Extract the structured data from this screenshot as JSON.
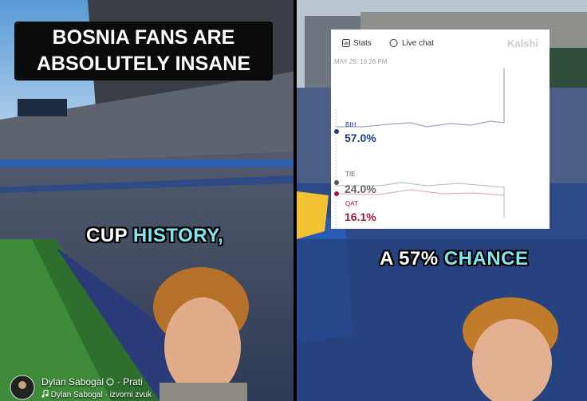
{
  "left_video": {
    "headline": [
      "BOSNIA FANS ARE",
      "ABSOLUTELY INSANE"
    ],
    "caption": {
      "white": "CUP",
      "highlight": "HISTORY,"
    }
  },
  "right_video": {
    "caption": {
      "white": "A 57%",
      "highlight": "CHANCE"
    },
    "market_card": {
      "tabs": [
        "Stats",
        "Live chat"
      ],
      "brand": "Kalshi",
      "timestamp": "MAY 29, 10:26 PM",
      "outcomes": [
        {
          "label": "BIH",
          "value": "57.0%"
        },
        {
          "label": "TIE",
          "value": "24.0%"
        },
        {
          "label": "QAT",
          "value": "16.1%"
        }
      ]
    }
  },
  "footer": {
    "author": "Dylan Sabogal",
    "follow": "· Prati",
    "audio": "Dylan Sabogal · izvorni zvuk"
  }
}
